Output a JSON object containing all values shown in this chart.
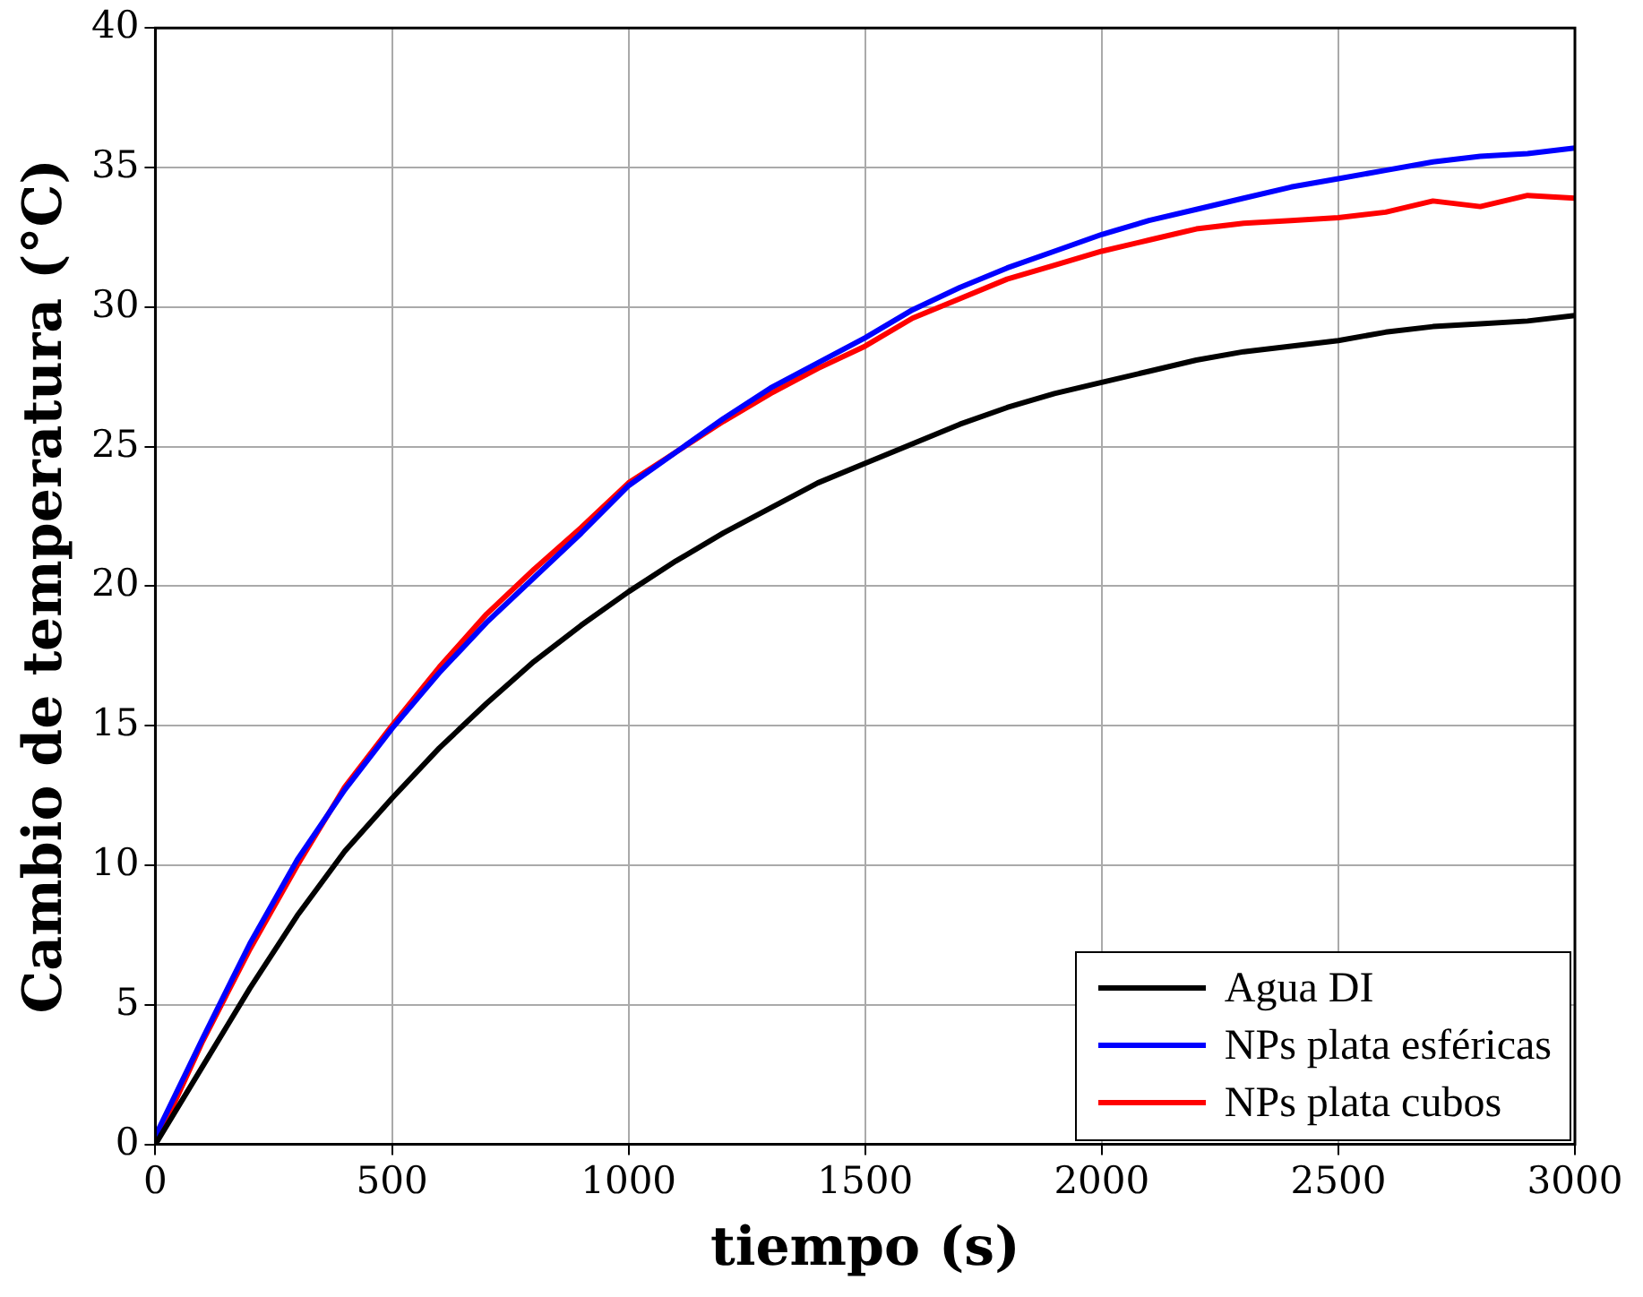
{
  "chart_data": {
    "type": "line",
    "xlabel": "tiempo (s)",
    "ylabel": "Cambio de temperatura (°C)",
    "x": [
      0,
      100,
      200,
      300,
      400,
      500,
      600,
      700,
      800,
      900,
      1000,
      1100,
      1200,
      1300,
      1400,
      1500,
      1600,
      1700,
      1800,
      1900,
      2000,
      2100,
      2200,
      2300,
      2400,
      2500,
      2600,
      2700,
      2800,
      2900,
      3000
    ],
    "series": [
      {
        "name": "Agua DI",
        "color": "#000000",
        "values": [
          0,
          2.8,
          5.6,
          8.2,
          10.5,
          12.4,
          14.2,
          15.8,
          17.3,
          18.6,
          19.8,
          20.9,
          21.9,
          22.8,
          23.7,
          24.4,
          25.1,
          25.8,
          26.4,
          26.9,
          27.3,
          27.7,
          28.1,
          28.4,
          28.6,
          28.8,
          29.1,
          29.3,
          29.4,
          29.5,
          29.7
        ]
      },
      {
        "name": "NPs plata esféricas",
        "color": "#0000ff",
        "values": [
          0.3,
          3.8,
          7.2,
          10.2,
          12.7,
          14.9,
          16.9,
          18.7,
          20.3,
          21.9,
          23.6,
          24.8,
          26.0,
          27.1,
          28.0,
          28.9,
          29.9,
          30.7,
          31.4,
          32.0,
          32.6,
          33.1,
          33.5,
          33.9,
          34.3,
          34.6,
          34.9,
          35.2,
          35.4,
          35.5,
          35.7
        ]
      },
      {
        "name": "NPs plata cubos",
        "color": "#ff0000",
        "values": [
          0,
          3.7,
          7.0,
          10.0,
          12.8,
          15.0,
          17.1,
          19.0,
          20.6,
          22.1,
          23.7,
          24.8,
          25.9,
          26.9,
          27.8,
          28.6,
          29.6,
          30.3,
          31.0,
          31.5,
          32.0,
          32.4,
          32.8,
          33.0,
          33.1,
          33.2,
          33.4,
          33.8,
          33.6,
          34.0,
          33.9
        ]
      }
    ],
    "xlim": [
      0,
      3000
    ],
    "xticks": [
      0,
      500,
      1000,
      1500,
      2000,
      2500,
      3000
    ],
    "ylim": [
      0,
      40
    ],
    "yticks": [
      0,
      5,
      10,
      15,
      20,
      25,
      30,
      35,
      40
    ],
    "grid": true,
    "legend": "bottom right",
    "marker": "none",
    "line_style": "solid"
  }
}
